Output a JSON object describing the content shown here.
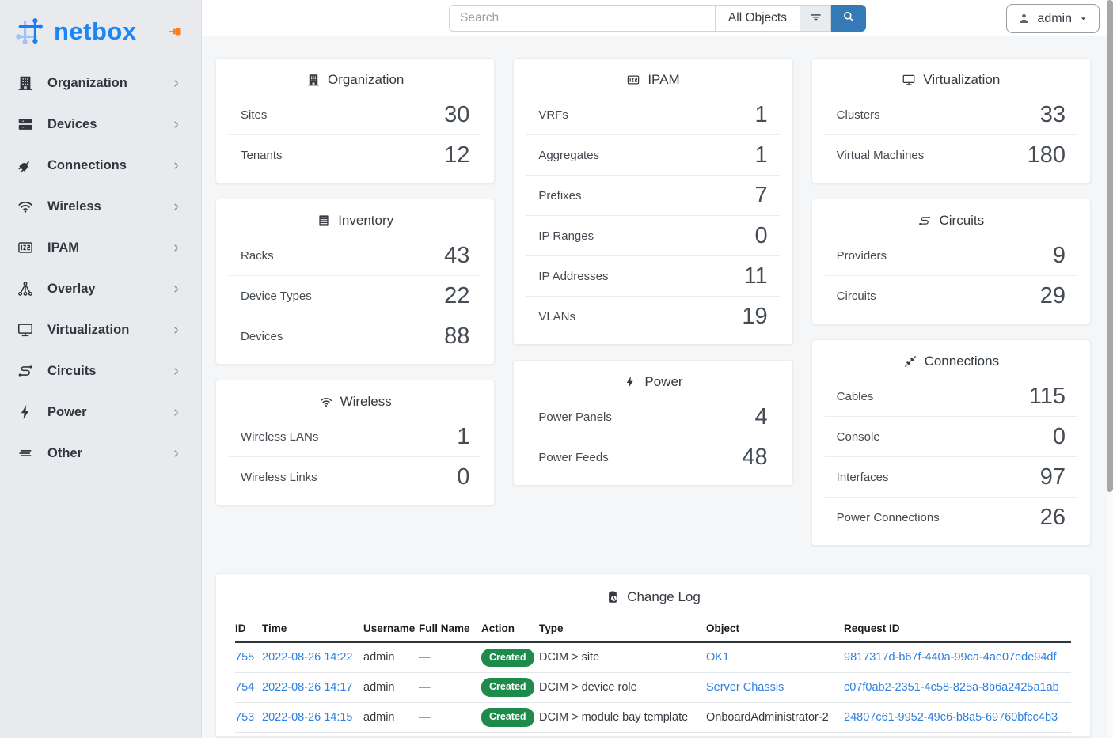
{
  "brand": {
    "name": "netbox"
  },
  "topbar": {
    "search_placeholder": "Search",
    "scope_label": "All Objects",
    "user_label": "admin"
  },
  "sidebar": {
    "items": [
      {
        "label": "Organization",
        "icon": "building-icon"
      },
      {
        "label": "Devices",
        "icon": "server-icon"
      },
      {
        "label": "Connections",
        "icon": "plug-icon"
      },
      {
        "label": "Wireless",
        "icon": "wifi-icon"
      },
      {
        "label": "IPAM",
        "icon": "counter-icon"
      },
      {
        "label": "Overlay",
        "icon": "graph-icon"
      },
      {
        "label": "Virtualization",
        "icon": "monitor-icon"
      },
      {
        "label": "Circuits",
        "icon": "route-icon"
      },
      {
        "label": "Power",
        "icon": "bolt-icon"
      },
      {
        "label": "Other",
        "icon": "lines-icon"
      }
    ]
  },
  "dashboard": {
    "columns": [
      [
        {
          "title": "Organization",
          "icon": "building-icon",
          "rows": [
            {
              "label": "Sites",
              "value": "30"
            },
            {
              "label": "Tenants",
              "value": "12"
            }
          ]
        },
        {
          "title": "Inventory",
          "icon": "rack-icon",
          "rows": [
            {
              "label": "Racks",
              "value": "43"
            },
            {
              "label": "Device Types",
              "value": "22"
            },
            {
              "label": "Devices",
              "value": "88"
            }
          ]
        },
        {
          "title": "Wireless",
          "icon": "wifi-icon",
          "rows": [
            {
              "label": "Wireless LANs",
              "value": "1"
            },
            {
              "label": "Wireless Links",
              "value": "0"
            }
          ]
        }
      ],
      [
        {
          "title": "IPAM",
          "icon": "counter-icon",
          "rows": [
            {
              "label": "VRFs",
              "value": "1"
            },
            {
              "label": "Aggregates",
              "value": "1"
            },
            {
              "label": "Prefixes",
              "value": "7"
            },
            {
              "label": "IP Ranges",
              "value": "0"
            },
            {
              "label": "IP Addresses",
              "value": "11"
            },
            {
              "label": "VLANs",
              "value": "19"
            }
          ]
        },
        {
          "title": "Power",
          "icon": "bolt-icon",
          "rows": [
            {
              "label": "Power Panels",
              "value": "4"
            },
            {
              "label": "Power Feeds",
              "value": "48"
            }
          ]
        }
      ],
      [
        {
          "title": "Virtualization",
          "icon": "monitor-icon",
          "rows": [
            {
              "label": "Clusters",
              "value": "33"
            },
            {
              "label": "Virtual Machines",
              "value": "180"
            }
          ]
        },
        {
          "title": "Circuits",
          "icon": "route-icon",
          "rows": [
            {
              "label": "Providers",
              "value": "9"
            },
            {
              "label": "Circuits",
              "value": "29"
            }
          ]
        },
        {
          "title": "Connections",
          "icon": "cable-icon",
          "rows": [
            {
              "label": "Cables",
              "value": "115"
            },
            {
              "label": "Console",
              "value": "0"
            },
            {
              "label": "Interfaces",
              "value": "97"
            },
            {
              "label": "Power Connections",
              "value": "26"
            }
          ]
        }
      ]
    ]
  },
  "changelog": {
    "title": "Change Log",
    "icon": "clipboard-clock-icon",
    "columns": [
      "ID",
      "Time",
      "Username",
      "Full Name",
      "Action",
      "Type",
      "Object",
      "Request ID"
    ],
    "rows": [
      {
        "id": "755",
        "time": "2022-08-26 14:22",
        "username": "admin",
        "full_name": "—",
        "action": "Created",
        "type": "DCIM > site",
        "object": "OK1",
        "object_is_link": true,
        "request_id": "9817317d-b67f-440a-99ca-4ae07ede94df"
      },
      {
        "id": "754",
        "time": "2022-08-26 14:17",
        "username": "admin",
        "full_name": "—",
        "action": "Created",
        "type": "DCIM > device role",
        "object": "Server Chassis",
        "object_is_link": true,
        "request_id": "c07f0ab2-2351-4c58-825a-8b6a2425a1ab"
      },
      {
        "id": "753",
        "time": "2022-08-26 14:15",
        "username": "admin",
        "full_name": "—",
        "action": "Created",
        "type": "DCIM > module bay template",
        "object": "OnboardAdministrator-2",
        "object_is_link": false,
        "request_id": "24807c61-9952-49c6-b8a5-69760bfcc4b3"
      }
    ]
  },
  "colors": {
    "brand_blue": "#1b86f5",
    "link_blue": "#2e7fe0",
    "primary_button_blue": "#337ab7",
    "badge_green": "#1e8a4c",
    "pin_orange": "#fd7e14"
  }
}
